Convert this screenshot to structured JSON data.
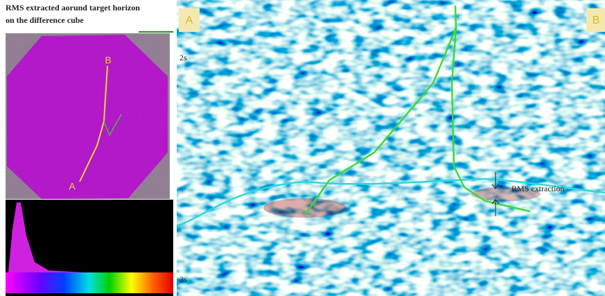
{
  "figure": {
    "title_lines": [
      "RMS extracted aorund target horizon",
      "on the difference cube"
    ],
    "map": {
      "label_b": "B",
      "label_a": "A"
    },
    "section": {
      "label_a": "A",
      "label_b": "B",
      "time_top": "2s",
      "time_bottom": "3s",
      "annotation": "RMS extraction"
    }
  }
}
